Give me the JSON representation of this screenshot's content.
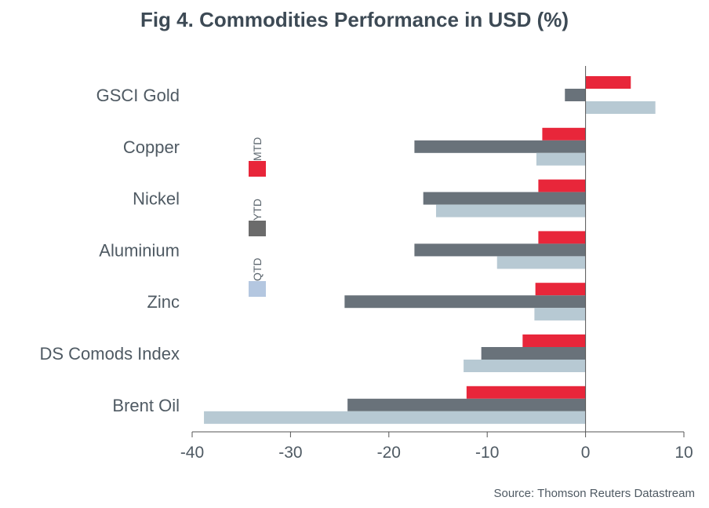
{
  "chart_data": {
    "type": "bar",
    "orientation": "horizontal",
    "title": "Fig 4. Commodities Performance in USD (%)",
    "source": "Source: Thomson Reuters Datastream",
    "categories": [
      "GSCI Gold",
      "Copper",
      "Nickel",
      "Aluminium",
      "Zinc",
      "DS Comods Index",
      "Brent Oil"
    ],
    "series": [
      {
        "name": "MTD",
        "color": "#e8263a",
        "values": [
          4.6,
          -4.4,
          -4.8,
          -4.8,
          -5.1,
          -6.4,
          -12.1
        ]
      },
      {
        "name": "YTD",
        "color": "#69727a",
        "values": [
          -2.1,
          -17.4,
          -16.5,
          -17.4,
          -24.5,
          -10.6,
          -24.2
        ]
      },
      {
        "name": "QTD",
        "color": "#b7c9d3",
        "values": [
          7.1,
          -5.0,
          -15.2,
          -9.0,
          -5.2,
          -12.4,
          -38.8
        ]
      }
    ],
    "legend_swatch_colors": {
      "MTD": "#e8263a",
      "YTD": "#6b6b6b",
      "QTD": "#b4c7e0"
    },
    "xlim": [
      -40,
      10
    ],
    "xticks": [
      "-40",
      "-30",
      "-20",
      "-10",
      "0",
      "10"
    ],
    "xlabel": "",
    "ylabel": "",
    "legend_position": "left-middle",
    "grid": false
  }
}
